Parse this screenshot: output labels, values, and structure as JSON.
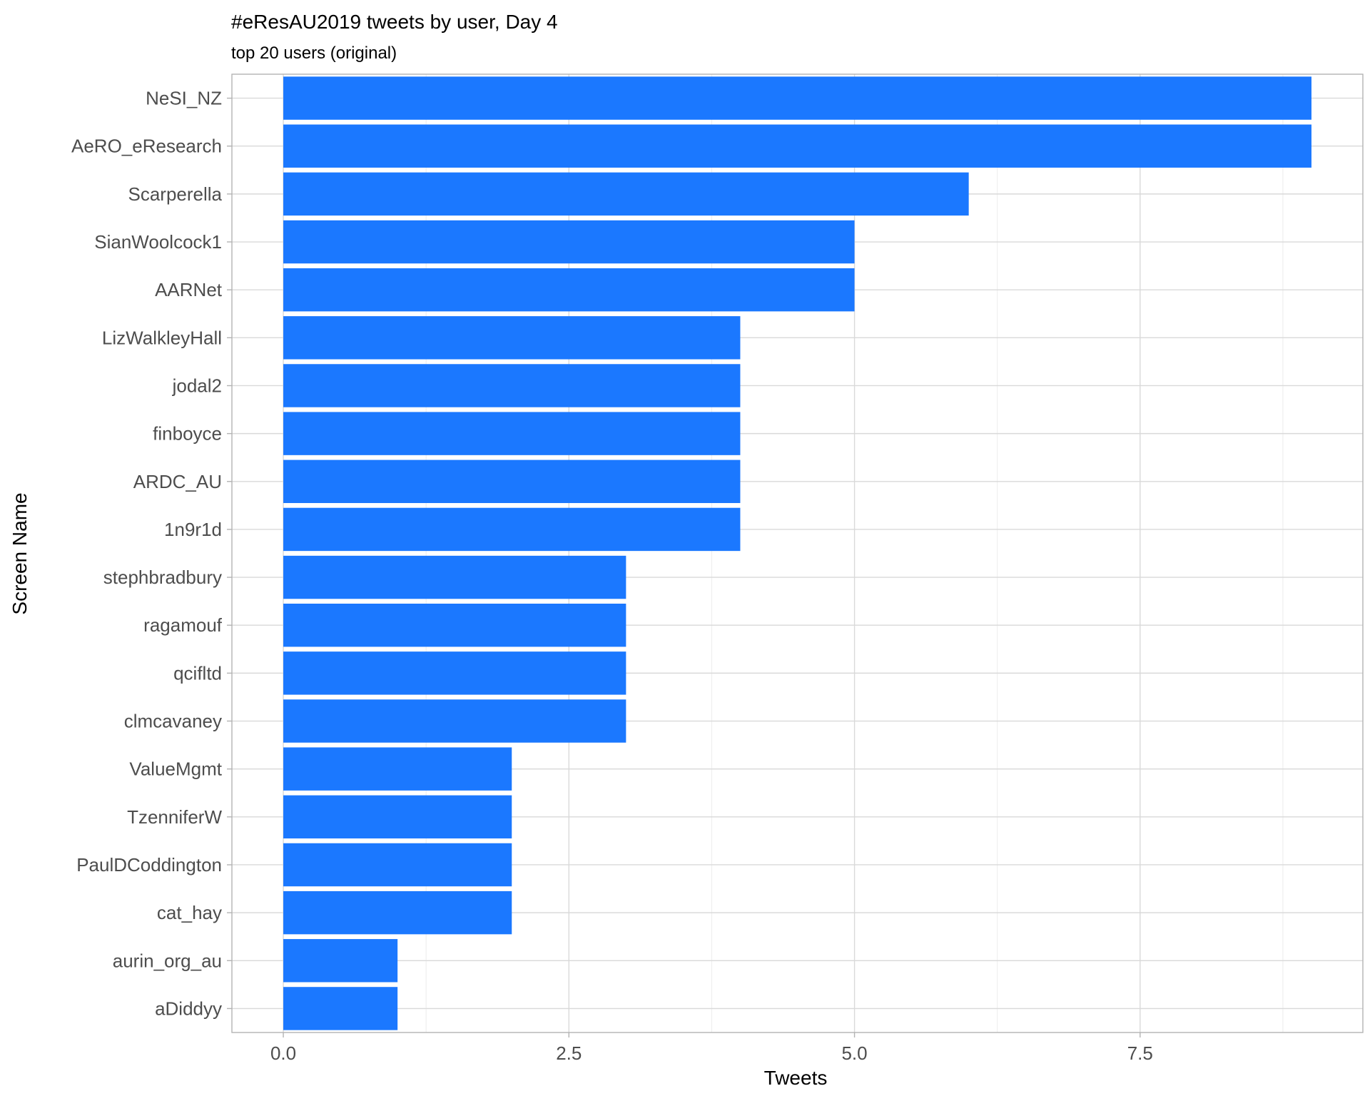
{
  "chart_data": {
    "type": "bar",
    "orientation": "horizontal",
    "title": "#eResAU2019 tweets by user, Day 4",
    "subtitle": "top 20 users (original)",
    "xlabel": "Tweets",
    "ylabel": "Screen Name",
    "xlim": [
      -0.45,
      9.45
    ],
    "xticks": [
      0.0,
      2.5,
      5.0,
      7.5
    ],
    "xtick_labels": [
      "0.0",
      "2.5",
      "5.0",
      "7.5"
    ],
    "grid": true,
    "bar_color": "#1b78ff",
    "categories": [
      "NeSI_NZ",
      "AeRO_eResearch",
      "Scarperella",
      "SianWoolcock1",
      "AARNet",
      "LizWalkleyHall",
      "jodal2",
      "finboyce",
      "ARDC_AU",
      "1n9r1d",
      "stephbradbury",
      "ragamouf",
      "qcifltd",
      "clmcavaney",
      "ValueMgmt",
      "TzenniferW",
      "PaulDCoddington",
      "cat_hay",
      "aurin_org_au",
      "aDiddyy"
    ],
    "values": [
      9,
      9,
      6,
      5,
      5,
      4,
      4,
      4,
      4,
      4,
      3,
      3,
      3,
      3,
      2,
      2,
      2,
      2,
      1,
      1
    ]
  }
}
